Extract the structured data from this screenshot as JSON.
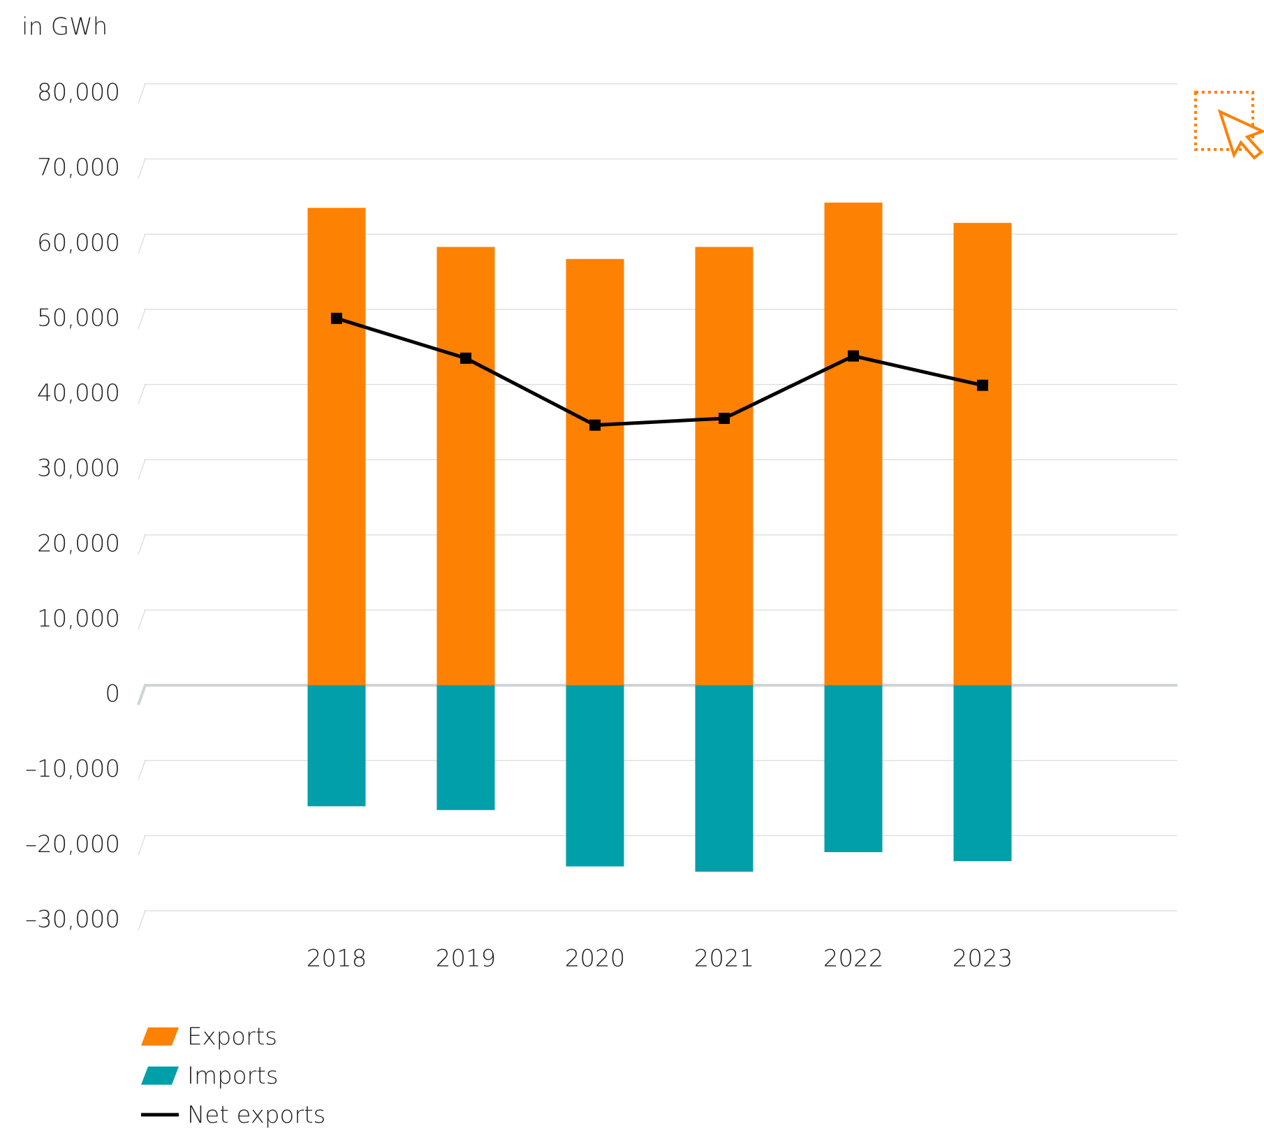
{
  "chart_data": {
    "type": "bar-line",
    "y_label": "in GWh",
    "categories": [
      "2018",
      "2019",
      "2020",
      "2021",
      "2022",
      "2023"
    ],
    "series": [
      {
        "name": "Exports",
        "type": "bar",
        "color": "#fd8103",
        "values": [
          63500,
          58300,
          56700,
          58300,
          64200,
          61500
        ]
      },
      {
        "name": "Imports",
        "type": "bar",
        "color": "#009fa9",
        "values": [
          -16100,
          -16600,
          -24100,
          -24800,
          -22200,
          -23400
        ]
      },
      {
        "name": "Net exports",
        "type": "line",
        "color": "#000000",
        "values": [
          48800,
          43500,
          34600,
          35500,
          43800,
          39900
        ]
      }
    ],
    "ylim": [
      -30000,
      80000
    ],
    "yticks": [
      {
        "value": -30000,
        "label": "–30,000"
      },
      {
        "value": -20000,
        "label": "–20,000"
      },
      {
        "value": -10000,
        "label": "–10,000"
      },
      0,
      {
        "value": 10000,
        "label": "10,000"
      },
      {
        "value": 20000,
        "label": "20,000"
      },
      {
        "value": 30000,
        "label": "30,000"
      },
      {
        "value": 40000,
        "label": "40,000"
      },
      {
        "value": 50000,
        "label": "50,000"
      },
      {
        "value": 60000,
        "label": "60,000"
      },
      {
        "value": 70000,
        "label": "70,000"
      },
      {
        "value": 80000,
        "label": "80,000"
      }
    ],
    "grid": true,
    "legend": "bottom-left"
  }
}
